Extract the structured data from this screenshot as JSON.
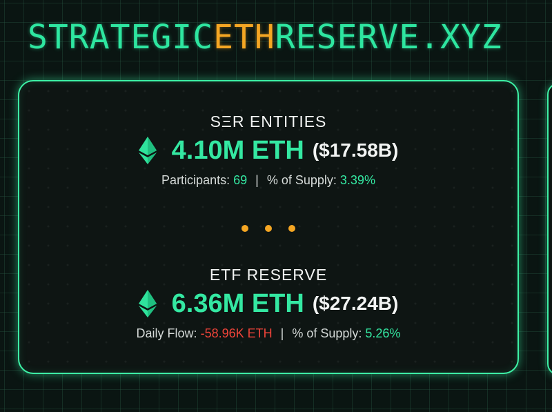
{
  "header": {
    "title_part1": "STRATEGIC",
    "title_accent": "ETH",
    "title_part2": "RESERVE.XYZ"
  },
  "colors": {
    "brand_green": "#2ee6a0",
    "accent_orange": "#f5a623",
    "negative_red": "#f0443a"
  },
  "ser_entities": {
    "title": "SΞR ENTITIES",
    "icon": "ethereum-icon",
    "amount": "4.10M ETH",
    "usd_value": "($17.58B)",
    "participants_label": "Participants:",
    "participants_value": "69",
    "separator": "|",
    "supply_label": "% of Supply:",
    "supply_value": "3.39%"
  },
  "etf_reserve": {
    "title": "ETF RESERVE",
    "icon": "ethereum-icon",
    "amount": "6.36M ETH",
    "usd_value": "($27.24B)",
    "daily_flow_label": "Daily Flow:",
    "daily_flow_value": "-58.96K ETH",
    "separator": "|",
    "supply_label": "% of Supply:",
    "supply_value": "5.26%"
  }
}
